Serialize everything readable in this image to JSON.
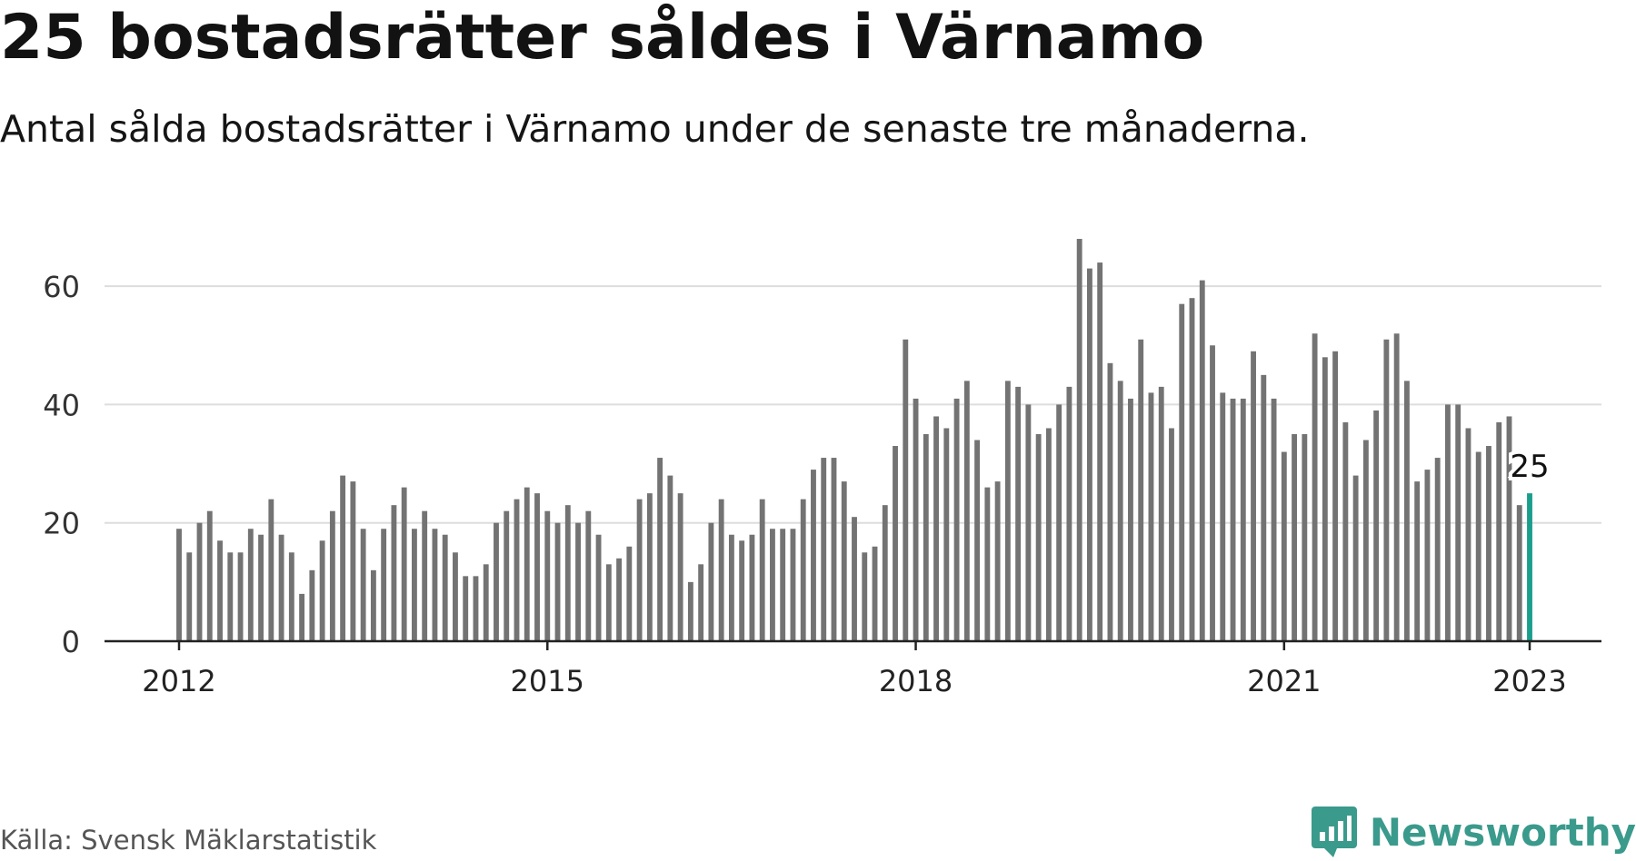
{
  "header": {
    "title": "25 bostadsrätter såldes i Värnamo",
    "subtitle": "Antal sålda bostadsrätter i Värnamo under de senaste tre månaderna."
  },
  "footer": {
    "source": "Källa: Svensk Mäklarstatistik",
    "brand": "Newsworthy",
    "brand_icon": "newsworthy-logo-icon"
  },
  "colors": {
    "bar": "#737373",
    "highlight": "#1a9e8c",
    "grid": "#dddddd",
    "axis": "#222222",
    "brand": "#3a9a8c"
  },
  "chart_data": {
    "type": "bar",
    "xlabel": "",
    "ylabel": "",
    "ylim": [
      0,
      70
    ],
    "yticks": [
      0,
      20,
      40,
      60
    ],
    "xticks": [
      "2012",
      "2015",
      "2018",
      "2021",
      "2023"
    ],
    "grid": true,
    "start": "2012-01",
    "end": "2023-01",
    "highlight_label": "25",
    "values": [
      19,
      15,
      20,
      22,
      17,
      15,
      15,
      19,
      18,
      24,
      18,
      15,
      8,
      12,
      17,
      22,
      28,
      27,
      19,
      12,
      19,
      23,
      26,
      19,
      22,
      19,
      18,
      15,
      11,
      11,
      13,
      20,
      22,
      24,
      26,
      25,
      22,
      20,
      23,
      20,
      22,
      18,
      13,
      14,
      16,
      24,
      25,
      31,
      28,
      25,
      10,
      13,
      20,
      24,
      18,
      17,
      18,
      24,
      19,
      19,
      19,
      24,
      29,
      31,
      31,
      27,
      21,
      15,
      16,
      23,
      33,
      51,
      41,
      35,
      38,
      36,
      41,
      44,
      34,
      26,
      27,
      44,
      43,
      40,
      35,
      36,
      40,
      43,
      68,
      63,
      64,
      47,
      44,
      41,
      51,
      42,
      43,
      36,
      57,
      58,
      61,
      50,
      42,
      41,
      41,
      49,
      45,
      41,
      32,
      35,
      35,
      52,
      48,
      49,
      37,
      28,
      34,
      39,
      51,
      52,
      44,
      27,
      29,
      31,
      40,
      40,
      36,
      32,
      33,
      37,
      38,
      23,
      25
    ]
  }
}
